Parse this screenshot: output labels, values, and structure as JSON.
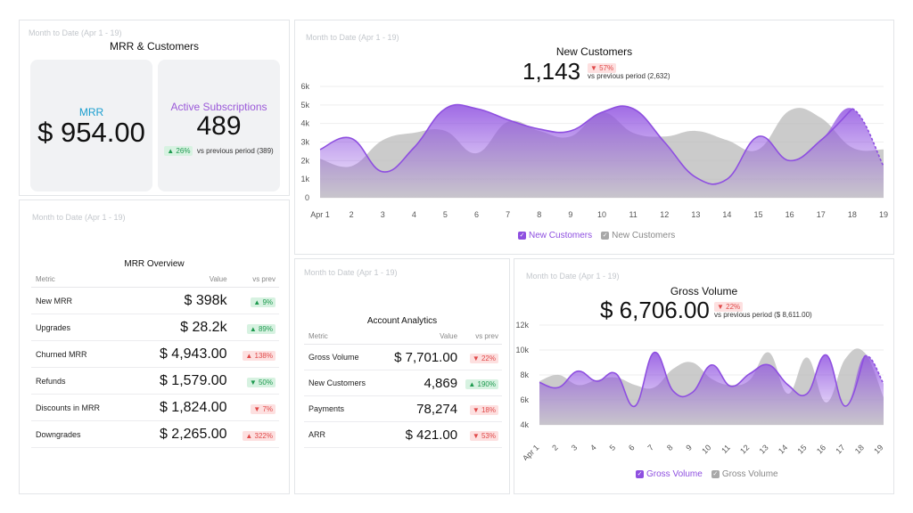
{
  "mrr_card": {
    "period": "Month to Date (Apr 1 - 19)",
    "title": "MRR & Customers",
    "mrr_label": "MRR",
    "mrr_value": "$ 954.00",
    "subs_label": "Active Subscriptions",
    "subs_value": "489",
    "subs_badge": "▲ 26%",
    "subs_compare": "vs previous period (389)"
  },
  "new_customers": {
    "period": "Month to Date (Apr 1 - 19)",
    "title": "New Customers",
    "value": "1,143",
    "badge": "▼ 57%",
    "compare": "vs previous period (2,632)",
    "legend": [
      "New Customers",
      "New Customers"
    ]
  },
  "mrr_overview": {
    "period": "Month to Date (Apr 1 - 19)",
    "title": "MRR Overview",
    "headers": [
      "Metric",
      "Value",
      "vs prev"
    ],
    "rows": [
      {
        "metric": "New MRR",
        "value": "$ 398k",
        "change": "▲ 9%",
        "dir": "up-good"
      },
      {
        "metric": "Upgrades",
        "value": "$ 28.2k",
        "change": "▲ 89%",
        "dir": "up-good"
      },
      {
        "metric": "Churned MRR",
        "value": "$ 4,943.00",
        "change": "▲ 138%",
        "dir": "up-bad"
      },
      {
        "metric": "Refunds",
        "value": "$ 1,579.00",
        "change": "▼ 50%",
        "dir": "down-good"
      },
      {
        "metric": "Discounts in MRR",
        "value": "$ 1,824.00",
        "change": "▼ 7%",
        "dir": "down-bad"
      },
      {
        "metric": "Downgrades",
        "value": "$ 2,265.00",
        "change": "▲ 322%",
        "dir": "up-bad"
      }
    ]
  },
  "account_analytics": {
    "period": "Month to Date (Apr 1 - 19)",
    "title": "Account Analytics",
    "headers": [
      "Metric",
      "Value",
      "vs prev"
    ],
    "rows": [
      {
        "metric": "Gross Volume",
        "value": "$ 7,701.00",
        "change": "▼ 22%",
        "dir": "down-bad"
      },
      {
        "metric": "New Customers",
        "value": "4,869",
        "change": "▲ 190%",
        "dir": "up-good"
      },
      {
        "metric": "Payments",
        "value": "78,274",
        "change": "▼ 18%",
        "dir": "down-bad"
      },
      {
        "metric": "ARR",
        "value": "$ 421.00",
        "change": "▼ 53%",
        "dir": "down-bad"
      }
    ]
  },
  "gross_volume": {
    "period": "Month to Date (Apr 1 - 19)",
    "title": "Gross Volume",
    "value": "$ 6,706.00",
    "badge": "▼ 22%",
    "compare": "vs previous period ($ 8,611.00)",
    "legend": [
      "Gross Volume",
      "Gross Volume"
    ]
  },
  "colors": {
    "purple": "#8e4fe0",
    "gray": "#b9b9b9",
    "mrr_blue": "#1a9ecf",
    "subs_purple": "#9b59d9"
  },
  "chart_data": [
    {
      "type": "area",
      "title": "New Customers",
      "categories": [
        "Apr 1",
        "2",
        "3",
        "4",
        "5",
        "6",
        "7",
        "8",
        "9",
        "10",
        "11",
        "12",
        "13",
        "14",
        "15",
        "16",
        "17",
        "18",
        "19"
      ],
      "ylim": [
        0,
        6000
      ],
      "yticks": [
        "0",
        "1k",
        "2k",
        "3k",
        "4k",
        "5k",
        "6k"
      ],
      "ytick_values": [
        0,
        1000,
        2000,
        3000,
        4000,
        5000,
        6000
      ],
      "series": [
        {
          "name": "New Customers",
          "values": [
            2600,
            3200,
            1400,
            2700,
            4800,
            4800,
            4200,
            3700,
            3600,
            4600,
            4800,
            3000,
            1100,
            1000,
            3300,
            2000,
            3100,
            4800,
            1700
          ]
        },
        {
          "name": "New Customers",
          "values": [
            2100,
            1700,
            3100,
            3500,
            3600,
            2400,
            4100,
            3600,
            3300,
            4600,
            3500,
            3300,
            3600,
            3100,
            2600,
            4700,
            4300,
            2700,
            2600
          ]
        }
      ],
      "grid": true,
      "legend": "bottom"
    },
    {
      "type": "area",
      "title": "Gross Volume",
      "categories": [
        "Apr 1",
        "2",
        "3",
        "4",
        "5",
        "6",
        "7",
        "8",
        "9",
        "10",
        "11",
        "12",
        "13",
        "14",
        "15",
        "16",
        "17",
        "18",
        "19"
      ],
      "ylim": [
        4000,
        12000
      ],
      "yticks": [
        "4k",
        "6k",
        "8k",
        "10k",
        "12k"
      ],
      "ytick_values": [
        4000,
        6000,
        8000,
        10000,
        12000
      ],
      "series": [
        {
          "name": "Gross Volume",
          "values": [
            7400,
            7000,
            8300,
            7500,
            8100,
            5500,
            9800,
            6700,
            6600,
            8800,
            7100,
            8100,
            8800,
            7200,
            6500,
            9600,
            5500,
            9500,
            7300
          ]
        },
        {
          "name": "Gross Volume",
          "values": [
            7500,
            8000,
            7200,
            7600,
            7800,
            7200,
            7000,
            8500,
            9000,
            7700,
            7200,
            7600,
            9800,
            6500,
            9400,
            5800,
            9300,
            9800,
            6200
          ]
        }
      ],
      "grid": true,
      "legend": "bottom"
    }
  ]
}
